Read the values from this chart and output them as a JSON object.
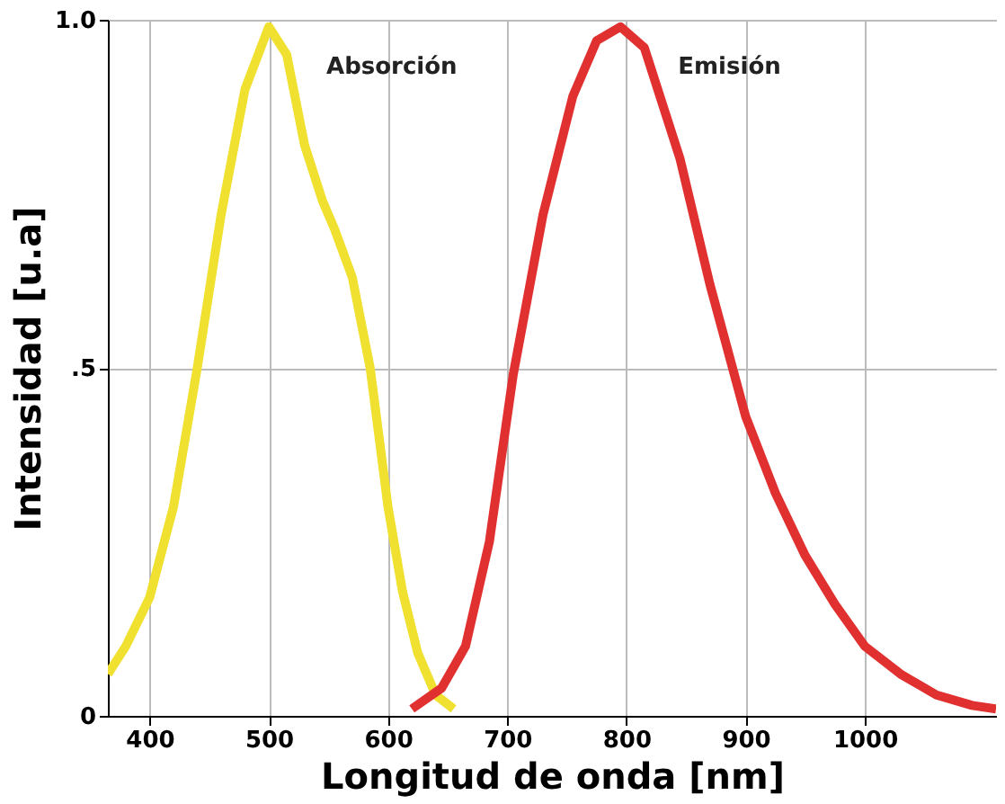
{
  "chart_data": {
    "type": "line",
    "xlabel": "Longitud de onda [nm]",
    "ylabel": "Intensidad [u.a]",
    "xlim": [
      365,
      1110
    ],
    "ylim": [
      0,
      1.0
    ],
    "xticks": [
      400,
      500,
      600,
      700,
      800,
      900,
      1000
    ],
    "yticks": [
      {
        "value": 0,
        "label": "0"
      },
      {
        "value": 0.5,
        "label": ".5"
      },
      {
        "value": 1.0,
        "label": "1.0"
      }
    ],
    "grid": true,
    "marker": "none",
    "line_style": "solid",
    "series": [
      {
        "name": "Absorción",
        "color": "#f0e030",
        "x": [
          365,
          380,
          400,
          420,
          440,
          460,
          480,
          500,
          515,
          530,
          545,
          555,
          570,
          585,
          600,
          612,
          625,
          640,
          655
        ],
        "values": [
          0.06,
          0.1,
          0.17,
          0.3,
          0.5,
          0.72,
          0.9,
          0.99,
          0.95,
          0.82,
          0.74,
          0.7,
          0.63,
          0.5,
          0.3,
          0.18,
          0.09,
          0.03,
          0.01
        ]
      },
      {
        "name": "Emisión",
        "color": "#e03030",
        "x": [
          620,
          645,
          665,
          685,
          705,
          730,
          755,
          775,
          795,
          815,
          845,
          870,
          900,
          925,
          950,
          975,
          1000,
          1030,
          1060,
          1090,
          1110
        ],
        "values": [
          0.01,
          0.04,
          0.1,
          0.25,
          0.49,
          0.72,
          0.89,
          0.97,
          0.99,
          0.96,
          0.8,
          0.62,
          0.43,
          0.32,
          0.23,
          0.16,
          0.1,
          0.06,
          0.03,
          0.015,
          0.01
        ]
      }
    ]
  }
}
